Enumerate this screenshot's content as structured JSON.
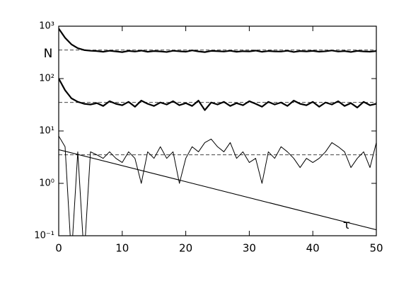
{
  "chart_data": {
    "type": "line",
    "x_label": "τ",
    "y_label": "N",
    "log_y": true,
    "xlim": [
      0,
      50
    ],
    "ylim": [
      0.1,
      1000
    ],
    "xticks": [
      0,
      10,
      20,
      30,
      40,
      50
    ],
    "yticks": [
      {
        "value": 0.1,
        "label": "10⁻¹"
      },
      {
        "value": 1,
        "label": "10⁰"
      },
      {
        "value": 10,
        "label": "10¹"
      },
      {
        "value": 100,
        "label": "10²"
      },
      {
        "value": 1000,
        "label": "10³"
      }
    ],
    "reference_lines": [
      350,
      35,
      3.5
    ],
    "x": [
      0,
      1,
      2,
      3,
      4,
      5,
      6,
      7,
      8,
      9,
      10,
      11,
      12,
      13,
      14,
      15,
      16,
      17,
      18,
      19,
      20,
      21,
      22,
      23,
      24,
      25,
      26,
      27,
      28,
      29,
      30,
      31,
      32,
      33,
      34,
      35,
      36,
      37,
      38,
      39,
      40,
      41,
      42,
      43,
      44,
      45,
      46,
      47,
      48,
      49,
      50
    ],
    "series": [
      {
        "color": "#000000",
        "values": [
          900,
          600,
          450,
          380,
          350,
          340,
          335,
          325,
          340,
          330,
          320,
          338,
          328,
          342,
          325,
          335,
          330,
          322,
          340,
          332,
          326,
          345,
          330,
          320,
          338,
          334,
          328,
          340,
          325,
          333,
          330,
          342,
          324,
          336,
          330,
          328,
          340,
          322,
          335,
          330,
          338,
          326,
          332,
          344,
          328,
          335,
          322,
          338,
          330,
          326,
          335
        ]
      },
      {
        "color": "#000000",
        "values": [
          100,
          60,
          42,
          36,
          33,
          32,
          34,
          30,
          37,
          33,
          31,
          36,
          29,
          38,
          33,
          30,
          35,
          32,
          37,
          31,
          34,
          30,
          38,
          25,
          35,
          32,
          36,
          30,
          34,
          31,
          37,
          33,
          29,
          36,
          32,
          35,
          30,
          38,
          33,
          31,
          36,
          29,
          35,
          32,
          37,
          30,
          34,
          28,
          36,
          31,
          33
        ]
      },
      {
        "color": "#000000",
        "values": [
          8,
          5,
          0,
          4,
          0,
          4,
          3.5,
          3,
          4,
          3,
          2.5,
          4,
          3,
          1,
          4,
          3,
          5,
          3,
          4,
          1,
          3,
          5,
          4,
          6,
          7,
          5,
          4,
          6,
          3,
          4,
          2.5,
          3,
          1,
          4,
          3,
          5,
          4,
          3,
          2,
          3,
          2.5,
          3,
          4,
          6,
          5,
          4,
          2,
          3,
          4,
          2,
          6
        ]
      }
    ],
    "decay_line": {
      "x": [
        0,
        50
      ],
      "values": [
        4.4,
        0.13
      ],
      "color": "#000000"
    }
  }
}
